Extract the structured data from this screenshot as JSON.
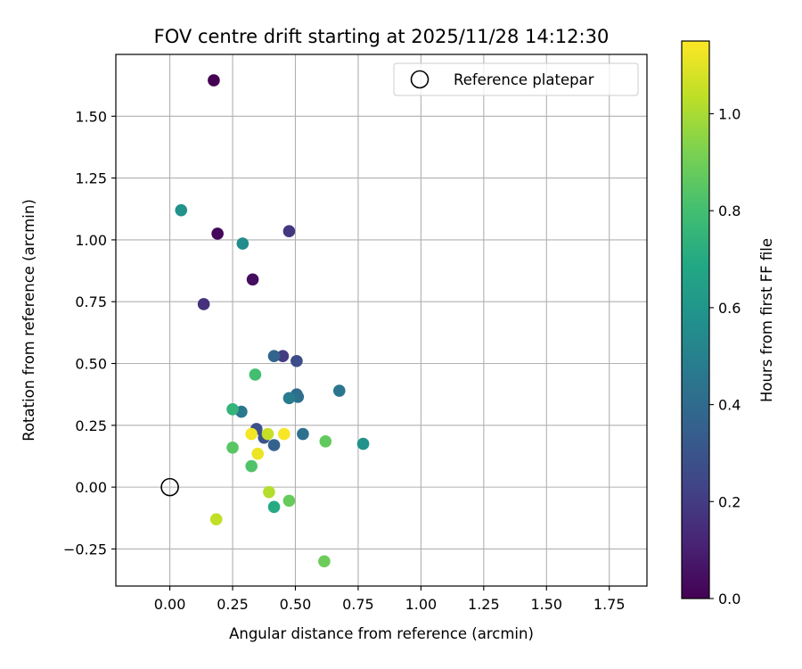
{
  "chart_data": {
    "type": "scatter",
    "title": "FOV centre drift starting at 2025/11/28 14:12:30",
    "xlabel": "Angular distance from reference (arcmin)",
    "ylabel": "Rotation from reference (arcmin)",
    "xlim": [
      -0.215,
      1.9
    ],
    "ylim": [
      -0.4,
      1.75
    ],
    "x_ticks": [
      0,
      0.25,
      0.5,
      0.75,
      1.0,
      1.25,
      1.5,
      1.75
    ],
    "x_tick_labels": [
      "0.00",
      "0.25",
      "0.50",
      "0.75",
      "1.00",
      "1.25",
      "1.50",
      "1.75"
    ],
    "y_ticks": [
      -0.25,
      0,
      0.25,
      0.5,
      0.75,
      1.0,
      1.25,
      1.5
    ],
    "y_tick_labels": [
      "−0.25",
      "0.00",
      "0.25",
      "0.50",
      "0.75",
      "1.00",
      "1.25",
      "1.50"
    ],
    "grid": true,
    "legend": {
      "position": "top-right",
      "entries": [
        "Reference platepar"
      ]
    },
    "reference_point": {
      "x": 0.0,
      "y": 0.0,
      "label": "Reference platepar"
    },
    "colorbar": {
      "label": "Hours from first FF file",
      "colormap": "viridis",
      "range": [
        0,
        1.15
      ],
      "ticks": [
        0,
        0.2,
        0.4,
        0.6,
        0.8,
        1.0
      ],
      "tick_labels": [
        "0.0",
        "0.2",
        "0.4",
        "0.6",
        "0.8",
        "1.0"
      ]
    },
    "points": [
      {
        "x": 0.175,
        "y": 1.645,
        "hours": 0.0
      },
      {
        "x": 0.19,
        "y": 1.025,
        "hours": 0.02
      },
      {
        "x": 0.33,
        "y": 0.84,
        "hours": 0.04
      },
      {
        "x": 0.135,
        "y": 0.74,
        "hours": 0.16
      },
      {
        "x": 0.475,
        "y": 1.035,
        "hours": 0.18
      },
      {
        "x": 0.45,
        "y": 0.53,
        "hours": 0.2
      },
      {
        "x": 0.505,
        "y": 0.51,
        "hours": 0.27
      },
      {
        "x": 0.345,
        "y": 0.235,
        "hours": 0.28
      },
      {
        "x": 0.375,
        "y": 0.2,
        "hours": 0.3
      },
      {
        "x": 0.415,
        "y": 0.17,
        "hours": 0.36
      },
      {
        "x": 0.415,
        "y": 0.53,
        "hours": 0.37
      },
      {
        "x": 0.505,
        "y": 0.375,
        "hours": 0.4
      },
      {
        "x": 0.51,
        "y": 0.365,
        "hours": 0.42
      },
      {
        "x": 0.53,
        "y": 0.215,
        "hours": 0.43
      },
      {
        "x": 0.675,
        "y": 0.39,
        "hours": 0.45
      },
      {
        "x": 0.285,
        "y": 0.305,
        "hours": 0.46
      },
      {
        "x": 0.475,
        "y": 0.36,
        "hours": 0.48
      },
      {
        "x": 0.29,
        "y": 0.985,
        "hours": 0.55
      },
      {
        "x": 0.045,
        "y": 1.12,
        "hours": 0.58
      },
      {
        "x": 0.77,
        "y": 0.175,
        "hours": 0.58
      },
      {
        "x": 0.415,
        "y": -0.08,
        "hours": 0.7
      },
      {
        "x": 0.25,
        "y": 0.315,
        "hours": 0.75
      },
      {
        "x": 0.34,
        "y": 0.455,
        "hours": 0.8
      },
      {
        "x": 0.325,
        "y": 0.085,
        "hours": 0.83
      },
      {
        "x": 0.25,
        "y": 0.16,
        "hours": 0.85
      },
      {
        "x": 0.62,
        "y": 0.185,
        "hours": 0.87
      },
      {
        "x": 0.475,
        "y": -0.055,
        "hours": 0.88
      },
      {
        "x": 0.615,
        "y": -0.3,
        "hours": 0.89
      },
      {
        "x": 0.395,
        "y": -0.02,
        "hours": 1.02
      },
      {
        "x": 0.185,
        "y": -0.13,
        "hours": 1.04
      },
      {
        "x": 0.39,
        "y": 0.215,
        "hours": 1.05
      },
      {
        "x": 0.35,
        "y": 0.135,
        "hours": 1.12
      },
      {
        "x": 0.325,
        "y": 0.215,
        "hours": 1.13
      },
      {
        "x": 0.455,
        "y": 0.215,
        "hours": 1.14
      }
    ]
  }
}
